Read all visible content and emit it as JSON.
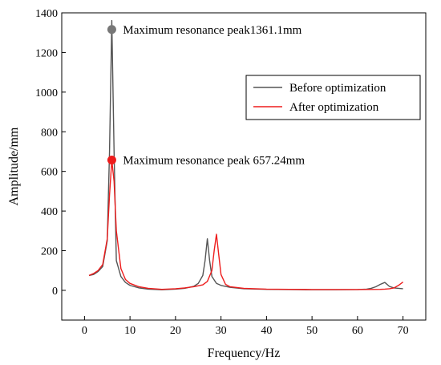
{
  "chart_data": {
    "type": "line",
    "xlabel": "Frequency/Hz",
    "ylabel": "Amplitude/mm",
    "xlim": [
      -5,
      75
    ],
    "ylim": [
      -150,
      1400
    ],
    "xticks": [
      0,
      10,
      20,
      30,
      40,
      50,
      60,
      70
    ],
    "yticks": [
      0,
      200,
      400,
      600,
      800,
      1000,
      1200,
      1400
    ],
    "grid": false,
    "legend_position": "top-right",
    "series": [
      {
        "name": "Before optimization",
        "color": "#555555",
        "x": [
          1,
          2,
          3,
          4,
          5,
          5.5,
          6,
          6.5,
          7,
          8,
          9,
          10,
          12,
          14,
          17,
          20,
          22,
          24,
          25,
          26,
          26.5,
          27,
          27.5,
          28,
          29,
          30,
          32,
          35,
          40,
          45,
          50,
          55,
          60,
          62,
          63,
          64,
          65,
          66,
          67,
          68,
          69,
          70
        ],
        "y": [
          75,
          80,
          95,
          120,
          250,
          700,
          1361.1,
          700,
          150,
          70,
          40,
          25,
          12,
          6,
          3,
          6,
          10,
          20,
          35,
          75,
          150,
          260,
          150,
          70,
          35,
          25,
          15,
          8,
          5,
          4,
          3,
          3,
          4,
          6,
          10,
          18,
          30,
          40,
          20,
          12,
          10,
          8
        ]
      },
      {
        "name": "After optimization",
        "color": "#ee1c1c",
        "x": [
          1,
          2,
          3,
          4,
          5,
          5.5,
          6,
          6.5,
          7,
          8,
          9,
          10,
          12,
          14,
          17,
          20,
          22,
          24,
          26,
          27,
          28,
          28.5,
          29,
          29.5,
          30,
          31,
          32,
          35,
          40,
          45,
          50,
          55,
          60,
          65,
          66,
          67,
          68,
          69,
          70
        ],
        "y": [
          75,
          85,
          100,
          130,
          260,
          480,
          657.24,
          550,
          300,
          110,
          55,
          35,
          18,
          10,
          5,
          8,
          12,
          18,
          28,
          45,
          100,
          200,
          283,
          180,
          80,
          30,
          18,
          10,
          6,
          5,
          4,
          4,
          4,
          5,
          6,
          8,
          12,
          25,
          42
        ]
      }
    ],
    "annotations": [
      {
        "text": "Maximum resonance peak1361.1mm",
        "x": 6,
        "y": 1316,
        "color": "#777777"
      },
      {
        "text": "Maximum resonance peak 657.24mm",
        "x": 6,
        "y": 657.24,
        "color": "#ee1c1c"
      }
    ]
  }
}
